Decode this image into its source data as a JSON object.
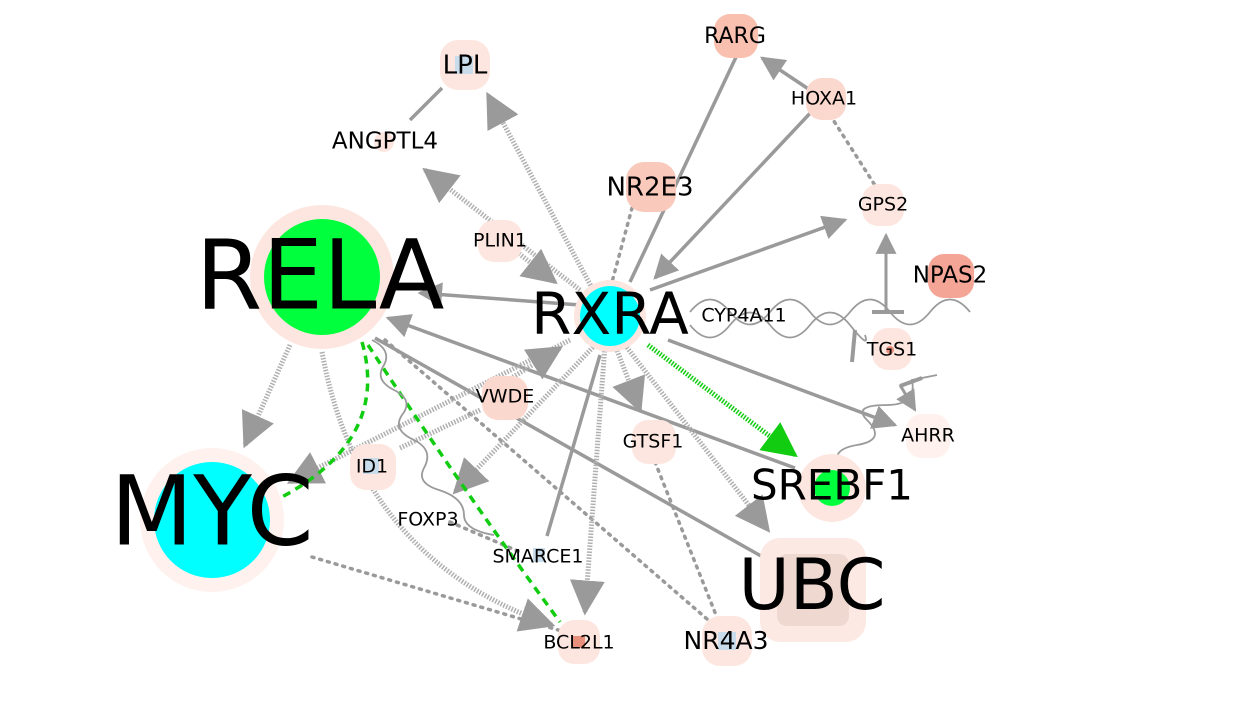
{
  "nodes": {
    "rela": "RELA",
    "myc": "MYC",
    "rxra": "RXRA",
    "ubc": "UBC",
    "srebf1": "SREBF1",
    "lpl": "LPL",
    "angptl4": "ANGPTL4",
    "plin1": "PLIN1",
    "nr2e3": "NR2E3",
    "rarg": "RARG",
    "hoxa1": "HOXA1",
    "gps2": "GPS2",
    "npas2": "NPAS2",
    "cyp4a11": "CYP4A11",
    "tgs1": "TGS1",
    "ahrr": "AHRR",
    "vwde": "VWDE",
    "gtsf1": "GTSF1",
    "id1": "ID1",
    "foxp3": "FOXP3",
    "smarce1": "SMARCE1",
    "bcl2l1": "BCL2L1",
    "nr4a3": "NR4A3"
  },
  "colors": {
    "edge": "#9a9a9a",
    "highlight_edge": "#22bb22",
    "halo_light": "#fde6e0",
    "halo_medium": "#f9c9bc",
    "halo_strong": "#f4a596",
    "core_green": "#00ff3c",
    "core_cyan": "#00ffff",
    "core_blue": "#c9dceb",
    "core_red": "#e8907c"
  }
}
